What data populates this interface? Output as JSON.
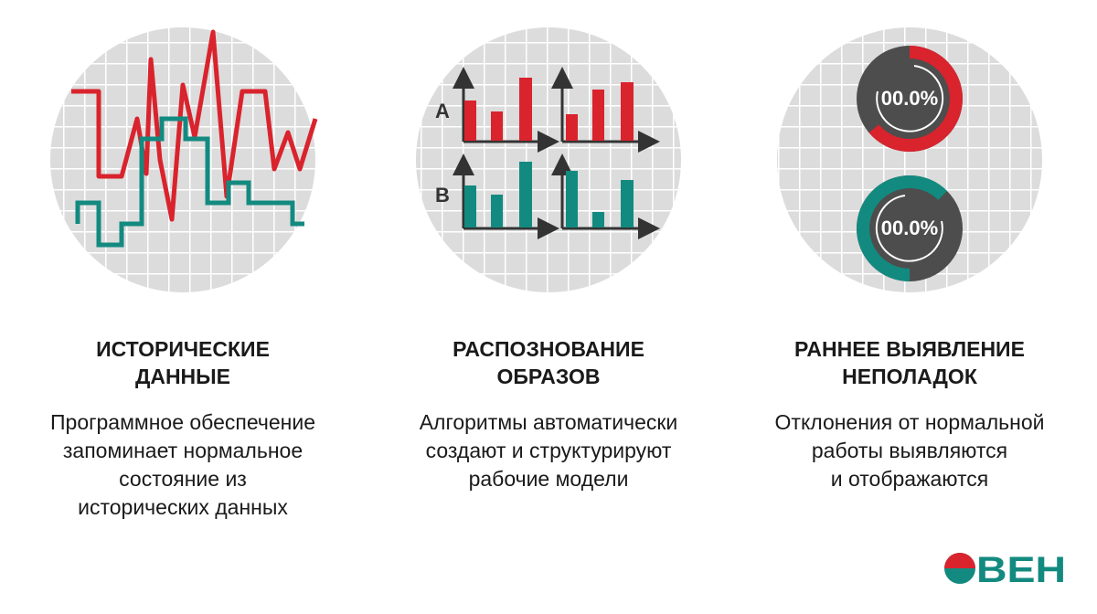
{
  "columns": [
    {
      "title": [
        "ИСТОРИЧЕСКИЕ",
        "ДАННЫЕ"
      ],
      "description": [
        "Программное обеспечение",
        "запоминает нормальное",
        "состояние из",
        "исторических данных"
      ]
    },
    {
      "title": [
        "РАСПОЗНОВАНИЕ",
        "ОБРАЗОВ"
      ],
      "description": [
        "Алгоритмы автоматически",
        "создают и структурируют",
        "рабочие модели"
      ],
      "labels": [
        "A",
        "B"
      ]
    },
    {
      "title": [
        "РАННЕЕ ВЫЯВЛЕНИЕ",
        "НЕПОЛАДОК"
      ],
      "description": [
        "Отклонения от нормальной",
        "работы выявляются",
        "и отображаются"
      ],
      "gauges": [
        "00.0%",
        "00.0%"
      ]
    }
  ],
  "logo": "ОВЕН"
}
